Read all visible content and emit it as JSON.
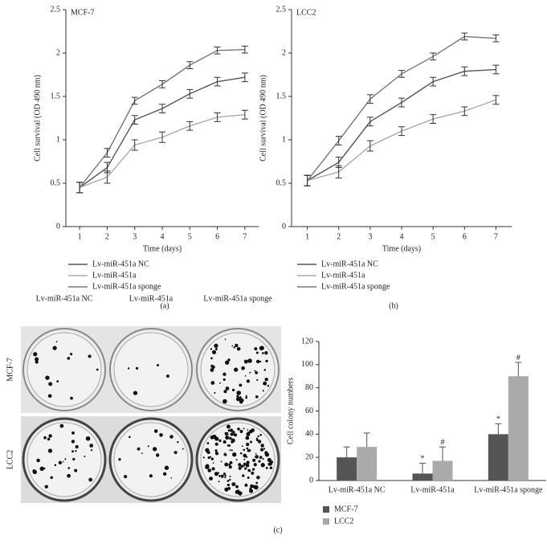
{
  "chart_data": [
    {
      "type": "line",
      "title": "MCF-7",
      "panel_label": "(a)",
      "x_label": "Time (days)",
      "y_label": "Cell survival (OD 490 nm)",
      "x": [
        1,
        2,
        3,
        4,
        5,
        6,
        7
      ],
      "xlim": [
        0.5,
        7.5
      ],
      "xticks": [
        1,
        2,
        3,
        4,
        5,
        6,
        7
      ],
      "ylim": [
        0,
        2.5
      ],
      "yticks": [
        0,
        0.5,
        1,
        1.5,
        2,
        2.5
      ],
      "series": [
        {
          "name": "Lv-miR-451a NC",
          "color": "#555555",
          "values": [
            0.45,
            0.68,
            1.23,
            1.36,
            1.53,
            1.67,
            1.72
          ],
          "errors": [
            0.06,
            0.06,
            0.05,
            0.05,
            0.05,
            0.05,
            0.05
          ]
        },
        {
          "name": "Lv-miR-451a",
          "color": "#aaaaaa",
          "values": [
            0.45,
            0.57,
            0.94,
            1.03,
            1.16,
            1.26,
            1.29
          ],
          "errors": [
            0.06,
            0.07,
            0.06,
            0.06,
            0.05,
            0.05,
            0.05
          ]
        },
        {
          "name": "Lv-miR-451a sponge",
          "color": "#777777",
          "values": [
            0.45,
            0.85,
            1.45,
            1.64,
            1.86,
            2.03,
            2.04
          ],
          "errors": [
            0.06,
            0.05,
            0.04,
            0.04,
            0.04,
            0.04,
            0.04
          ]
        }
      ]
    },
    {
      "type": "line",
      "title": "LCC2",
      "panel_label": "(b)",
      "x_label": "Time (days)",
      "y_label": "Cell survival (OD 490 nm)",
      "x": [
        1,
        2,
        3,
        4,
        5,
        6,
        7
      ],
      "xlim": [
        0.5,
        7.5
      ],
      "xticks": [
        1,
        2,
        3,
        4,
        5,
        6,
        7
      ],
      "ylim": [
        0,
        2.5
      ],
      "yticks": [
        0,
        0.5,
        1,
        1.5,
        2,
        2.5
      ],
      "series": [
        {
          "name": "Lv-miR-451a NC",
          "color": "#555555",
          "values": [
            0.53,
            0.74,
            1.21,
            1.43,
            1.67,
            1.79,
            1.81
          ],
          "errors": [
            0.06,
            0.06,
            0.05,
            0.05,
            0.05,
            0.05,
            0.05
          ]
        },
        {
          "name": "Lv-miR-451a",
          "color": "#aaaaaa",
          "values": [
            0.53,
            0.63,
            0.93,
            1.1,
            1.24,
            1.33,
            1.46
          ],
          "errors": [
            0.06,
            0.07,
            0.06,
            0.05,
            0.05,
            0.05,
            0.05
          ]
        },
        {
          "name": "Lv-miR-451a sponge",
          "color": "#777777",
          "values": [
            0.53,
            0.99,
            1.47,
            1.76,
            1.96,
            2.19,
            2.17
          ],
          "errors": [
            0.06,
            0.05,
            0.05,
            0.04,
            0.04,
            0.04,
            0.04
          ]
        }
      ]
    },
    {
      "type": "bar",
      "panel_label": "(c)",
      "y_label": "Cell colony numbers",
      "categories": [
        "Lv-miR-451a NC",
        "Lv-miR-451a",
        "Lv-miR-451a sponge"
      ],
      "ylim": [
        0,
        120
      ],
      "yticks": [
        0,
        20,
        40,
        60,
        80,
        100,
        120
      ],
      "series": [
        {
          "name": "MCF-7",
          "color": "#555555",
          "values": [
            20,
            6,
            40
          ],
          "errors": [
            9,
            9,
            9
          ],
          "annotations": [
            null,
            "*",
            "*"
          ]
        },
        {
          "name": "LCC2",
          "color": "#aaaaaa",
          "values": [
            29,
            17,
            90
          ],
          "errors": [
            12,
            12,
            12
          ],
          "annotations": [
            null,
            "#",
            "#"
          ]
        }
      ]
    }
  ],
  "plates": {
    "columns": [
      "Lv-miR-451a NC",
      "Lv-miR-451a",
      "Lv-miR-451a sponge"
    ],
    "rows": [
      "MCF-7",
      "LCC2"
    ]
  }
}
